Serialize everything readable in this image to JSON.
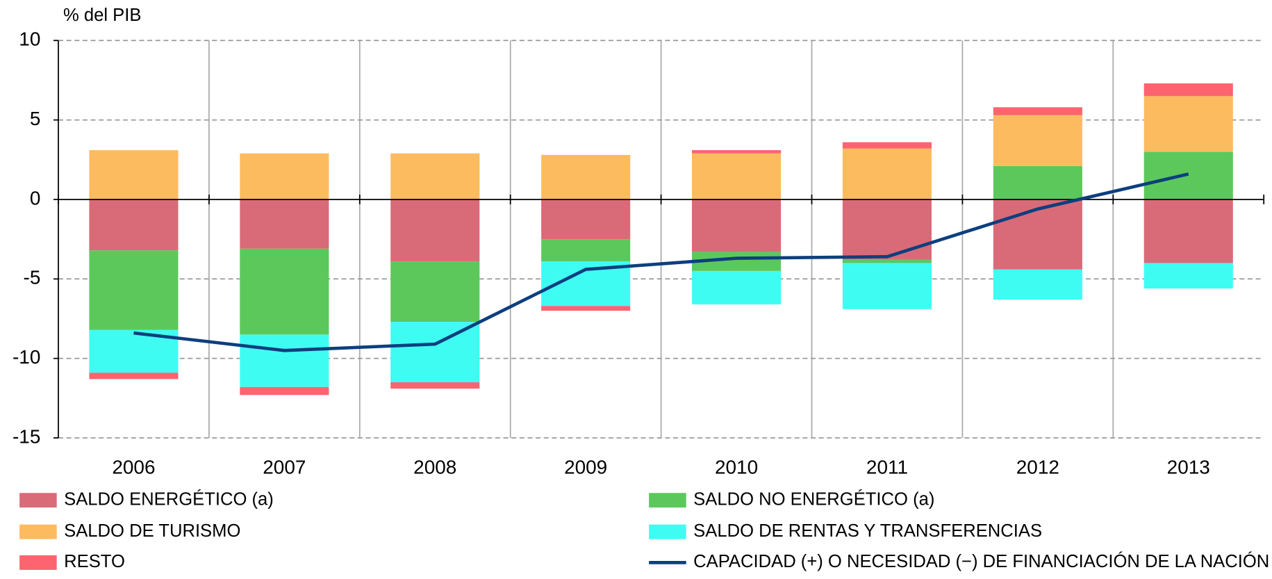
{
  "chart_data": {
    "type": "stacked_bar_line",
    "y_axis_label": "% del PIB",
    "categories": [
      "2006",
      "2007",
      "2008",
      "2009",
      "2010",
      "2011",
      "2012",
      "2013"
    ],
    "ylim": [
      -15,
      10
    ],
    "yticks": [
      -15,
      -10,
      -5,
      0,
      5,
      10
    ],
    "grid": true,
    "series": [
      {
        "name": "SALDO ENERGÉTICO (a)",
        "color": "#d96b78",
        "values": [
          -3.2,
          -3.1,
          -3.9,
          -2.5,
          -3.3,
          -3.8,
          -4.4,
          -4.0
        ]
      },
      {
        "name": "SALDO NO ENERGÉTICO (a)",
        "color": "#5cc85c",
        "values": [
          -5.0,
          -5.4,
          -3.8,
          -1.4,
          -1.2,
          -0.2,
          2.1,
          3.0
        ]
      },
      {
        "name": "SALDO DE TURISMO",
        "color": "#fdbb5f",
        "values": [
          3.1,
          2.9,
          2.9,
          2.8,
          2.9,
          3.2,
          3.2,
          3.5
        ]
      },
      {
        "name": "SALDO DE RENTAS Y TRANSFERENCIAS",
        "color": "#3ffcf3",
        "values": [
          -2.7,
          -3.3,
          -3.8,
          -2.8,
          -2.1,
          -2.9,
          -1.9,
          -1.6
        ]
      },
      {
        "name": "RESTO",
        "color": "#fc6470",
        "values": [
          -0.4,
          -0.5,
          -0.4,
          -0.3,
          0.2,
          0.4,
          0.5,
          0.8
        ]
      }
    ],
    "line": {
      "name": "CAPACIDAD (+) O NECESIDAD (−) DE FINANCIACIÓN DE LA NACIÓN",
      "color": "#0d3f7e",
      "values": [
        -8.4,
        -9.5,
        -9.1,
        -4.4,
        -3.7,
        -3.6,
        -0.6,
        1.6
      ]
    }
  }
}
